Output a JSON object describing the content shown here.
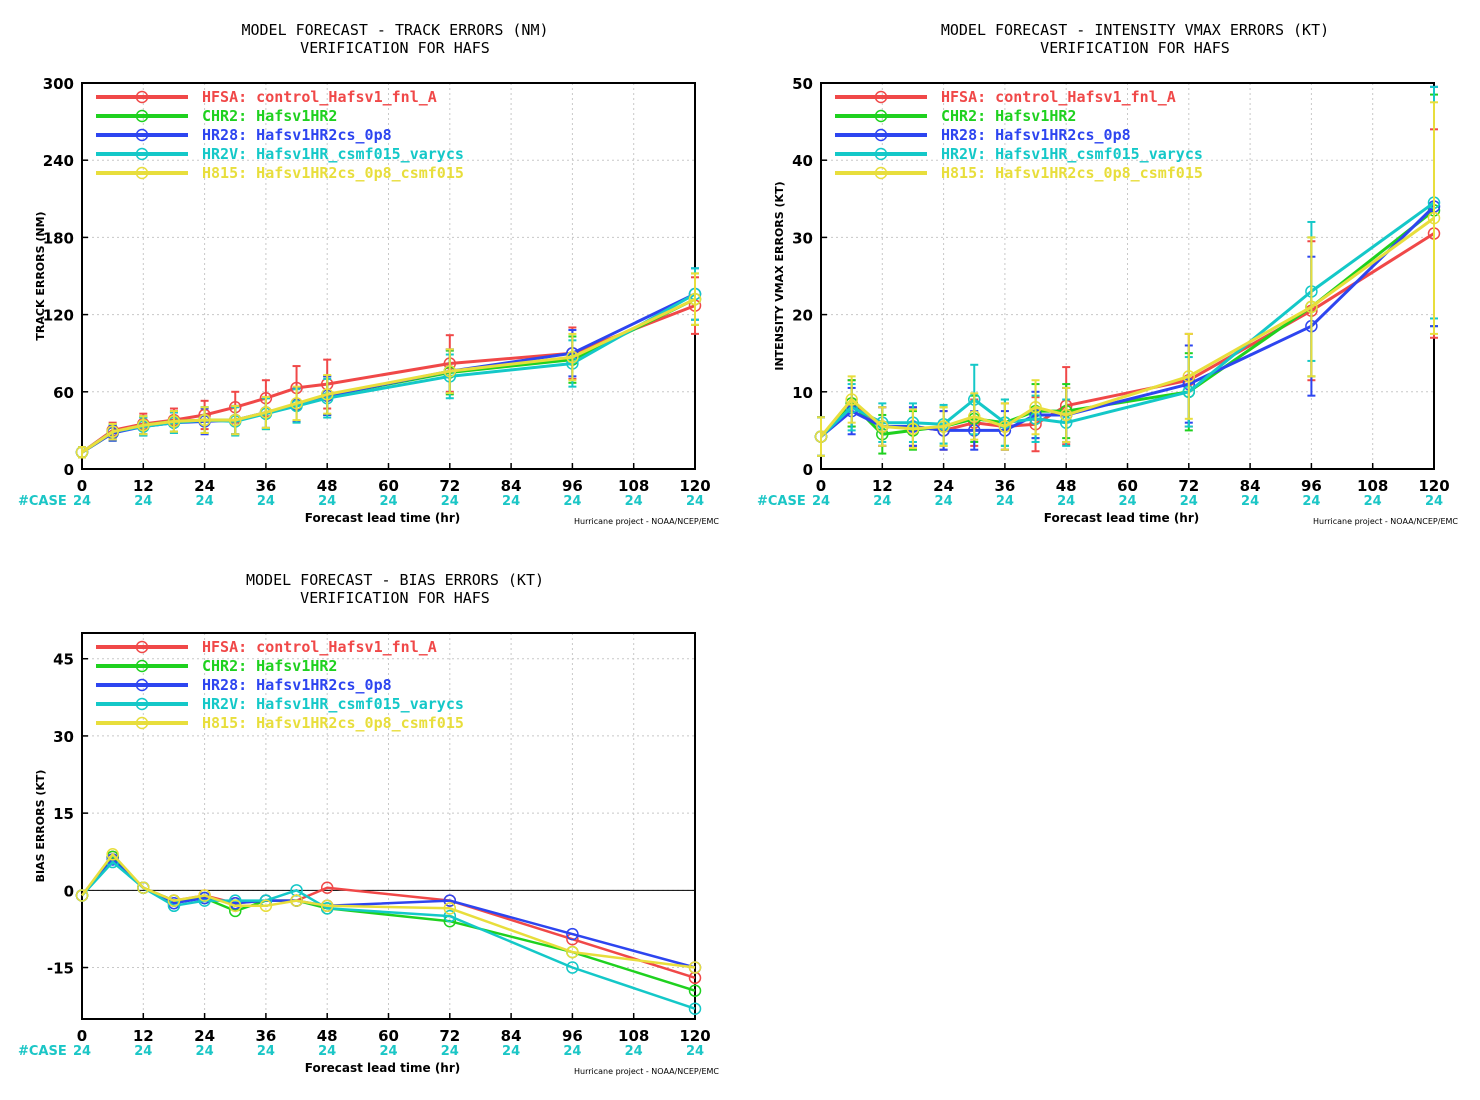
{
  "colors": {
    "HFSA": "#f04848",
    "CHR2": "#1fd11f",
    "HR28": "#2d45f0",
    "HR2V": "#14c8c8",
    "H815": "#e8de3c"
  },
  "common": {
    "xlabel": "Forecast lead time (hr)",
    "credit": "Hurricane project - NOAA/NCEP/EMC",
    "case_label": "#CASE",
    "x_ticks": [
      0,
      12,
      24,
      36,
      48,
      60,
      72,
      84,
      96,
      108,
      120
    ],
    "case_counts": [
      "24",
      "24",
      "24",
      "24",
      "24",
      "24",
      "24",
      "24",
      "24",
      "24",
      "24"
    ]
  },
  "chart_data": [
    {
      "id": "track",
      "type": "line",
      "title": "MODEL FORECAST - TRACK ERRORS (NM)",
      "subtitle": "VERIFICATION FOR HAFS",
      "xlabel": "Forecast lead time (hr)",
      "ylabel": "TRACK ERRORS (NM)",
      "xlim": [
        0,
        120
      ],
      "ylim": [
        0,
        300
      ],
      "y_ticks": [
        0,
        60,
        120,
        180,
        240,
        300
      ],
      "grid": true,
      "legend_position": "top-left",
      "error_bars": true,
      "x": [
        0,
        6,
        12,
        18,
        24,
        30,
        36,
        42,
        48,
        72,
        96,
        120
      ],
      "series": [
        {
          "key": "HFSA",
          "name": "HFSA: control_Hafsv1_fnl_A",
          "values": [
            13,
            30,
            35,
            38,
            42,
            48,
            55,
            63,
            66,
            82,
            90,
            127
          ],
          "err": [
            4,
            6,
            8,
            9,
            11,
            12,
            14,
            17,
            19,
            22,
            20,
            22
          ]
        },
        {
          "key": "CHR2",
          "name": "CHR2: Hafsv1HR2",
          "values": [
            13,
            28,
            34,
            37,
            38,
            38,
            43,
            50,
            57,
            75,
            85,
            132
          ],
          "err": [
            4,
            6,
            7,
            8,
            10,
            11,
            12,
            13,
            15,
            17,
            18,
            20
          ]
        },
        {
          "key": "HR28",
          "name": "HR28: Hafsv1HR2cs_0p8",
          "values": [
            13,
            28,
            33,
            36,
            37,
            38,
            44,
            50,
            57,
            76,
            90,
            136
          ],
          "err": [
            4,
            6,
            7,
            8,
            10,
            11,
            12,
            13,
            15,
            17,
            18,
            20
          ]
        },
        {
          "key": "HR2V",
          "name": "HR2V: Hafsv1HR_csmf015_varycs",
          "values": [
            13,
            29,
            33,
            36,
            38,
            37,
            43,
            49,
            55,
            72,
            82,
            136
          ],
          "err": [
            4,
            6,
            7,
            8,
            10,
            11,
            12,
            13,
            15,
            17,
            18,
            20
          ]
        },
        {
          "key": "H815",
          "name": "H815: Hafsv1HR2cs_0p8_csmf015",
          "values": [
            13,
            29,
            34,
            37,
            38,
            38,
            44,
            51,
            58,
            76,
            87,
            132
          ],
          "err": [
            4,
            6,
            7,
            8,
            10,
            11,
            12,
            13,
            15,
            17,
            18,
            20
          ]
        }
      ]
    },
    {
      "id": "intensity",
      "type": "line",
      "title": "MODEL FORECAST - INTENSITY VMAX ERRORS (KT)",
      "subtitle": "VERIFICATION FOR HAFS",
      "xlabel": "Forecast lead time (hr)",
      "ylabel": "INTENSITY VMAX ERRORS (KT)",
      "xlim": [
        0,
        120
      ],
      "ylim": [
        0,
        50
      ],
      "y_ticks": [
        0,
        10,
        20,
        30,
        40,
        50
      ],
      "grid": true,
      "legend_position": "top-left",
      "error_bars": true,
      "x": [
        0,
        6,
        12,
        18,
        24,
        30,
        36,
        42,
        48,
        72,
        96,
        120
      ],
      "series": [
        {
          "key": "HFSA",
          "name": "HFSA: control_Hafsv1_fnl_A",
          "values": [
            4.2,
            8.5,
            5.5,
            5.5,
            5.0,
            6.0,
            5.5,
            5.8,
            8.2,
            11.5,
            20.5,
            30.5
          ],
          "err": [
            2.5,
            3.0,
            2.5,
            2.5,
            2.5,
            3.0,
            3.0,
            3.5,
            5.0,
            6.0,
            9.0,
            13.5
          ]
        },
        {
          "key": "CHR2",
          "name": "CHR2: Hafsv1HR2",
          "values": [
            4.2,
            8.5,
            4.5,
            5.0,
            5.5,
            6.5,
            6.0,
            7.5,
            7.5,
            10.0,
            21.0,
            33.5
          ],
          "err": [
            2.5,
            3.0,
            2.5,
            2.5,
            2.5,
            3.0,
            3.0,
            3.5,
            3.5,
            5.0,
            9.0,
            15.0
          ]
        },
        {
          "key": "HR28",
          "name": "HR28: Hafsv1HR2cs_0p8",
          "values": [
            4.2,
            7.5,
            5.5,
            5.5,
            5.0,
            5.0,
            5.0,
            7.0,
            7.0,
            11.0,
            18.5,
            34.0
          ],
          "err": [
            2.5,
            3.0,
            2.5,
            2.5,
            2.5,
            2.5,
            2.5,
            3.0,
            3.5,
            5.0,
            9.0,
            15.5
          ]
        },
        {
          "key": "HR2V",
          "name": "HR2V: Hafsv1HR_csmf015_varycs",
          "values": [
            4.2,
            8.0,
            6.0,
            6.0,
            5.8,
            9.0,
            6.0,
            6.5,
            6.0,
            10.0,
            23.0,
            34.5
          ],
          "err": [
            2.5,
            3.0,
            2.5,
            2.5,
            2.5,
            4.5,
            3.0,
            3.0,
            3.0,
            4.5,
            9.0,
            15.0
          ]
        },
        {
          "key": "H815",
          "name": "H815: Hafsv1HR2cs_0p8_csmf015",
          "values": [
            4.2,
            9.0,
            5.5,
            5.2,
            5.5,
            6.8,
            5.5,
            8.0,
            7.0,
            12.0,
            21.0,
            32.5
          ],
          "err": [
            2.5,
            3.0,
            2.5,
            2.5,
            2.5,
            3.0,
            3.0,
            3.5,
            3.5,
            5.5,
            9.0,
            15.0
          ]
        }
      ]
    },
    {
      "id": "bias",
      "type": "line",
      "title": "MODEL FORECAST - BIAS ERRORS (KT)",
      "subtitle": "VERIFICATION FOR HAFS",
      "xlabel": "Forecast lead time (hr)",
      "ylabel": "BIAS ERRORS (KT)",
      "xlim": [
        0,
        120
      ],
      "ylim": [
        -25,
        50
      ],
      "y_ticks": [
        -15,
        0,
        15,
        30,
        45
      ],
      "y_tick_labels": [
        "-15",
        "0",
        "15",
        "30",
        "45"
      ],
      "zero_line": true,
      "grid": true,
      "legend_position": "top-left",
      "error_bars": false,
      "x": [
        0,
        6,
        12,
        18,
        24,
        30,
        36,
        42,
        48,
        72,
        96,
        120
      ],
      "series": [
        {
          "key": "HFSA",
          "name": "HFSA: control_Hafsv1_fnl_A",
          "values": [
            -1,
            6.5,
            0.5,
            -2,
            -1,
            -2.5,
            -2,
            -2,
            0.5,
            -2,
            -9.5,
            -17
          ]
        },
        {
          "key": "CHR2",
          "name": "CHR2: Hafsv1HR2",
          "values": [
            -1,
            6.5,
            0.5,
            -2,
            -1.5,
            -4,
            -2,
            -2,
            -3.5,
            -6,
            -12,
            -19.5
          ]
        },
        {
          "key": "HR28",
          "name": "HR28: Hafsv1HR2cs_0p8",
          "values": [
            -1,
            6,
            0.5,
            -2.5,
            -1.5,
            -2.5,
            -2,
            -2,
            -3,
            -2,
            -8.5,
            -15
          ]
        },
        {
          "key": "HR2V",
          "name": "HR2V: Hafsv1HR_csmf015_varycs",
          "values": [
            -1,
            5.5,
            0.5,
            -3,
            -2,
            -2,
            -2,
            0,
            -3.5,
            -5,
            -15,
            -23
          ]
        },
        {
          "key": "H815",
          "name": "H815: Hafsv1HR2cs_0p8_csmf015",
          "values": [
            -1,
            7,
            0.5,
            -2,
            -1,
            -3,
            -3,
            -2,
            -3,
            -3.5,
            -12,
            -15
          ]
        }
      ]
    }
  ]
}
